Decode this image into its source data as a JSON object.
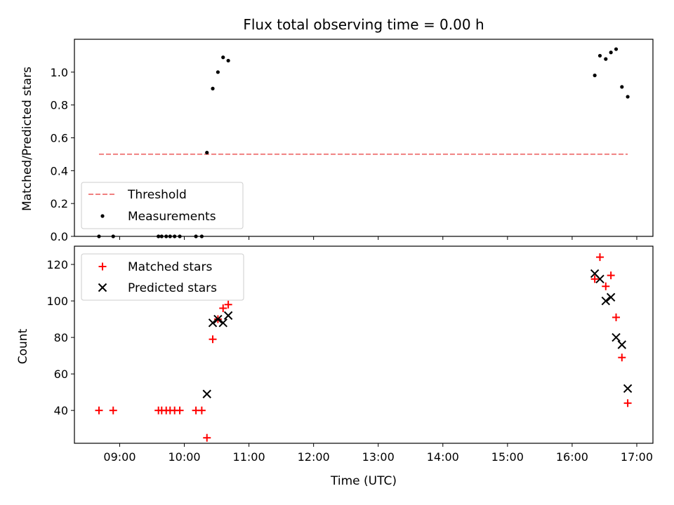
{
  "chart_data": [
    {
      "type": "scatter",
      "title": "Flux total observing time = 0.00 h",
      "xlabel": "",
      "ylabel": "Matched/Predicted stars",
      "xlim": [
        8.3,
        17.25
      ],
      "ylim": [
        0,
        1.2
      ],
      "yticks": [
        "0.0",
        "0.2",
        "0.4",
        "0.6",
        "0.8",
        "1.0"
      ],
      "yticks_values": [
        0,
        0.2,
        0.4,
        0.6,
        0.8,
        1.0
      ],
      "legend_position": "lower-left",
      "threshold": {
        "name": "Threshold",
        "y": 0.5,
        "x_range": [
          8.68,
          16.86
        ],
        "color": "#f08080"
      },
      "series": [
        {
          "name": "Measurements",
          "color": "#000000",
          "marker": "dot",
          "points": [
            [
              8.68,
              0.0
            ],
            [
              8.9,
              0.0
            ],
            [
              9.6,
              0.0
            ],
            [
              9.65,
              0.0
            ],
            [
              9.72,
              0.0
            ],
            [
              9.78,
              0.0
            ],
            [
              9.85,
              0.0
            ],
            [
              9.93,
              0.0
            ],
            [
              10.18,
              0.0
            ],
            [
              10.27,
              0.0
            ],
            [
              10.35,
              0.51
            ],
            [
              10.44,
              0.9
            ],
            [
              10.52,
              1.0
            ],
            [
              10.6,
              1.09
            ],
            [
              10.68,
              1.07
            ],
            [
              16.35,
              0.98
            ],
            [
              16.43,
              1.1
            ],
            [
              16.52,
              1.08
            ],
            [
              16.6,
              1.12
            ],
            [
              16.68,
              1.14
            ],
            [
              16.77,
              0.91
            ],
            [
              16.86,
              0.85
            ]
          ]
        }
      ]
    },
    {
      "type": "scatter",
      "title": "",
      "xlabel": "Time (UTC)",
      "ylabel": "Count",
      "xlim": [
        8.3,
        17.25
      ],
      "ylim": [
        22,
        130
      ],
      "yticks": [
        "40",
        "60",
        "80",
        "100",
        "120"
      ],
      "yticks_values": [
        40,
        60,
        80,
        100,
        120
      ],
      "xticks": [
        "09:00",
        "10:00",
        "11:00",
        "12:00",
        "13:00",
        "14:00",
        "15:00",
        "16:00",
        "17:00"
      ],
      "xticks_values": [
        9,
        10,
        11,
        12,
        13,
        14,
        15,
        16,
        17
      ],
      "legend_position": "upper-left",
      "series": [
        {
          "name": "Matched stars",
          "color": "#ff0000",
          "marker": "plus",
          "points": [
            [
              8.68,
              40
            ],
            [
              8.9,
              40
            ],
            [
              9.6,
              40
            ],
            [
              9.65,
              40
            ],
            [
              9.72,
              40
            ],
            [
              9.78,
              40
            ],
            [
              9.85,
              40
            ],
            [
              9.93,
              40
            ],
            [
              10.18,
              40
            ],
            [
              10.27,
              40
            ],
            [
              10.35,
              25
            ],
            [
              10.44,
              79
            ],
            [
              10.52,
              90
            ],
            [
              10.6,
              96
            ],
            [
              10.68,
              98
            ],
            [
              16.35,
              112
            ],
            [
              16.43,
              124
            ],
            [
              16.52,
              108
            ],
            [
              16.6,
              114
            ],
            [
              16.68,
              91
            ],
            [
              16.77,
              69
            ],
            [
              16.86,
              44
            ]
          ]
        },
        {
          "name": "Predicted stars",
          "color": "#000000",
          "marker": "x",
          "points": [
            [
              10.35,
              49
            ],
            [
              10.44,
              88
            ],
            [
              10.52,
              90
            ],
            [
              10.6,
              88
            ],
            [
              10.68,
              92
            ],
            [
              16.35,
              115
            ],
            [
              16.43,
              112
            ],
            [
              16.52,
              100
            ],
            [
              16.6,
              102
            ],
            [
              16.68,
              80
            ],
            [
              16.77,
              76
            ],
            [
              16.86,
              52
            ]
          ]
        }
      ]
    }
  ]
}
